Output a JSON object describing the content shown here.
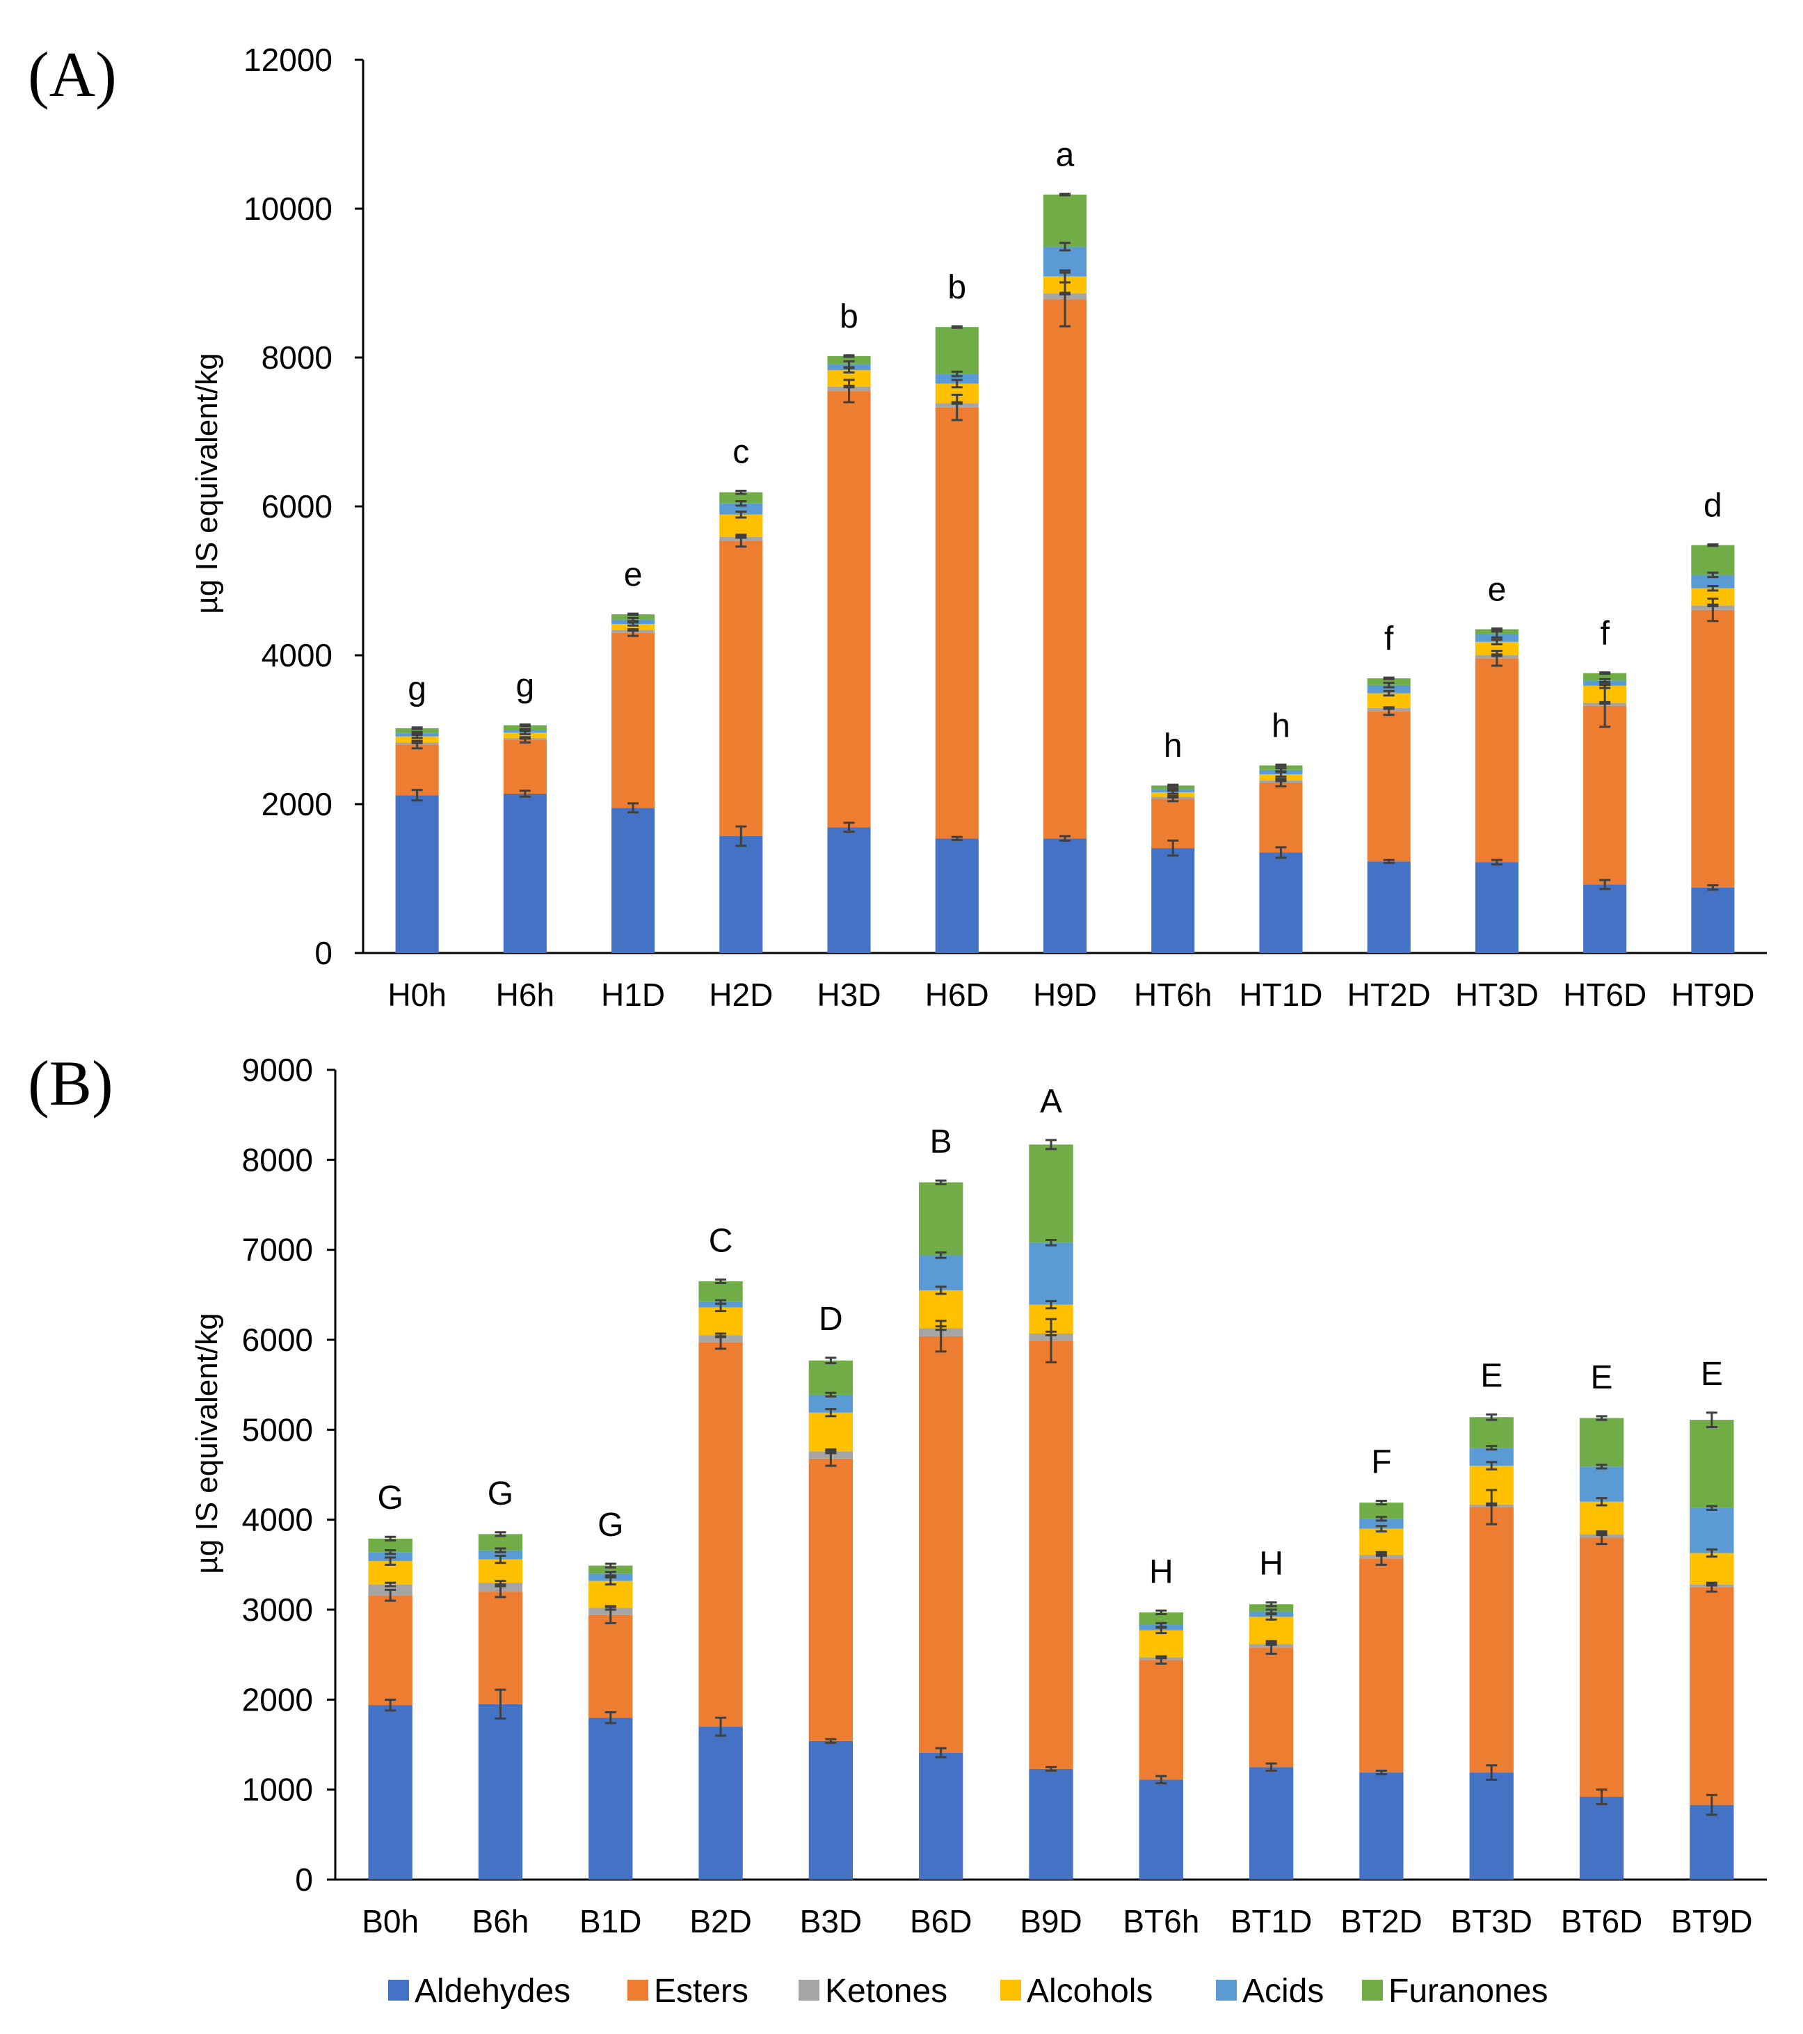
{
  "chart_data": [
    {
      "type": "bar",
      "stacked": true,
      "panel_label": "(A)",
      "ylabel": "µg IS equivalent/kg",
      "ylim": [
        0,
        12000
      ],
      "yticks": [
        0,
        2000,
        4000,
        6000,
        8000,
        10000,
        12000
      ],
      "ytick_labels": [
        "0",
        "2000",
        "4000",
        "6000",
        "8000",
        "10000",
        "12000"
      ],
      "categories": [
        "H0h",
        "H6h",
        "H1D",
        "H2D",
        "H3D",
        "H6D",
        "H9D",
        "HT6h",
        "HT1D",
        "HT2D",
        "HT3D",
        "HT6D",
        "HT9D"
      ],
      "significance": [
        "g",
        "g",
        "e",
        "c",
        "b",
        "b",
        "a",
        "h",
        "h",
        "f",
        "e",
        "f",
        "d"
      ],
      "series": [
        {
          "name": "Aldehydes",
          "color": "#4472C4",
          "values": [
            2120,
            2140,
            1950,
            1570,
            1690,
            1540,
            1540,
            1410,
            1350,
            1230,
            1220,
            920,
            880
          ],
          "errors": [
            70,
            40,
            60,
            130,
            60,
            20,
            30,
            100,
            70,
            20,
            30,
            60,
            30
          ]
        },
        {
          "name": "Esters",
          "color": "#ED7D31",
          "values": [
            680,
            720,
            2350,
            3970,
            5860,
            5790,
            7240,
            660,
            940,
            2020,
            2740,
            2400,
            3730
          ],
          "errors": [
            50,
            30,
            40,
            80,
            150,
            170,
            360,
            30,
            50,
            50,
            100,
            280,
            150
          ]
        },
        {
          "name": "Ketones",
          "color": "#A5A5A5",
          "values": [
            30,
            30,
            40,
            50,
            60,
            60,
            80,
            30,
            30,
            40,
            40,
            40,
            60
          ],
          "errors": [
            10,
            10,
            10,
            10,
            10,
            10,
            10,
            10,
            10,
            10,
            10,
            10,
            10
          ]
        },
        {
          "name": "Alcohols",
          "color": "#FFC000",
          "values": [
            80,
            70,
            80,
            300,
            220,
            260,
            230,
            60,
            80,
            200,
            180,
            230,
            230
          ],
          "errors": [
            20,
            20,
            20,
            40,
            30,
            50,
            80,
            20,
            30,
            30,
            30,
            30,
            30
          ]
        },
        {
          "name": "Acids",
          "color": "#5B9BD5",
          "values": [
            50,
            40,
            60,
            150,
            80,
            130,
            400,
            40,
            60,
            110,
            100,
            70,
            180
          ],
          "errors": [
            10,
            10,
            20,
            30,
            40,
            30,
            50,
            10,
            20,
            30,
            40,
            20,
            30
          ]
        },
        {
          "name": "Furanones",
          "color": "#70AD47",
          "values": [
            60,
            60,
            70,
            150,
            110,
            630,
            700,
            50,
            60,
            90,
            70,
            100,
            400
          ],
          "errors": [
            10,
            10,
            10,
            20,
            10,
            10,
            10,
            10,
            10,
            10,
            10,
            10,
            10
          ]
        }
      ]
    },
    {
      "type": "bar",
      "stacked": true,
      "panel_label": "(B)",
      "ylabel": "µg IS equivalent/kg",
      "ylim": [
        0,
        9000
      ],
      "yticks": [
        0,
        1000,
        2000,
        3000,
        4000,
        5000,
        6000,
        7000,
        8000,
        9000
      ],
      "ytick_labels": [
        "0",
        "1000",
        "2000",
        "3000",
        "4000",
        "5000",
        "6000",
        "7000",
        "8000",
        "9000"
      ],
      "categories": [
        "B0h",
        "B6h",
        "B1D",
        "B2D",
        "B3D",
        "B6D",
        "B9D",
        "BT6h",
        "BT1D",
        "BT2D",
        "BT3D",
        "BT6D",
        "BT9D"
      ],
      "significance": [
        "G",
        "G",
        "G",
        "C",
        "D",
        "B",
        "A",
        "H",
        "H",
        "F",
        "E",
        "E",
        "E"
      ],
      "series": [
        {
          "name": "Aldehydes",
          "color": "#4472C4",
          "values": [
            1940,
            1950,
            1800,
            1700,
            1540,
            1410,
            1230,
            1110,
            1250,
            1190,
            1190,
            920,
            830
          ],
          "errors": [
            60,
            160,
            60,
            100,
            20,
            50,
            20,
            40,
            40,
            20,
            80,
            80,
            110
          ]
        },
        {
          "name": "Esters",
          "color": "#ED7D31",
          "values": [
            1220,
            1250,
            1140,
            4270,
            3140,
            4630,
            4760,
            1330,
            1330,
            2380,
            2950,
            2880,
            2420
          ],
          "errors": [
            60,
            60,
            90,
            70,
            80,
            170,
            240,
            40,
            70,
            70,
            190,
            70,
            50
          ]
        },
        {
          "name": "Ketones",
          "color": "#A5A5A5",
          "values": [
            120,
            100,
            80,
            80,
            80,
            90,
            80,
            30,
            40,
            40,
            30,
            40,
            30
          ],
          "errors": [
            20,
            20,
            20,
            20,
            20,
            20,
            20,
            10,
            10,
            10,
            10,
            10,
            10
          ]
        },
        {
          "name": "Alcohols",
          "color": "#FFC000",
          "values": [
            260,
            260,
            300,
            310,
            430,
            420,
            320,
            300,
            300,
            290,
            430,
            360,
            350
          ],
          "errors": [
            40,
            40,
            40,
            40,
            40,
            40,
            40,
            30,
            30,
            30,
            40,
            40,
            40
          ]
        },
        {
          "name": "Acids",
          "color": "#5B9BD5",
          "values": [
            100,
            100,
            80,
            60,
            200,
            390,
            690,
            60,
            60,
            110,
            200,
            390,
            500
          ],
          "errors": [
            20,
            20,
            20,
            20,
            20,
            30,
            30,
            20,
            20,
            20,
            20,
            20,
            20
          ]
        },
        {
          "name": "Furanones",
          "color": "#70AD47",
          "values": [
            150,
            180,
            90,
            230,
            380,
            810,
            1090,
            140,
            80,
            180,
            340,
            540,
            980
          ],
          "errors": [
            20,
            20,
            20,
            20,
            30,
            20,
            50,
            20,
            20,
            20,
            30,
            20,
            80
          ]
        }
      ]
    }
  ],
  "legend": {
    "position": "bottom",
    "items": [
      {
        "name": "Aldehydes",
        "color": "#4472C4"
      },
      {
        "name": "Esters",
        "color": "#ED7D31"
      },
      {
        "name": "Ketones",
        "color": "#A5A5A5"
      },
      {
        "name": "Alcohols",
        "color": "#FFC000"
      },
      {
        "name": "Acids",
        "color": "#5B9BD5"
      },
      {
        "name": "Furanones",
        "color": "#70AD47"
      }
    ]
  }
}
